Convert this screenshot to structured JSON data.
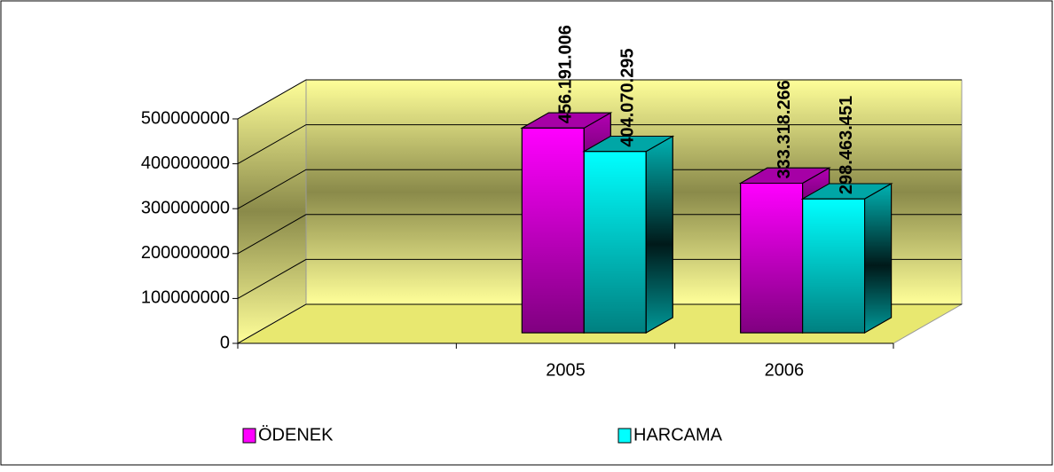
{
  "chart_data": {
    "type": "bar3d",
    "categories": [
      null,
      "2005",
      "2006"
    ],
    "series": [
      {
        "name": "ÖDENEK",
        "color": "#ff00ff",
        "values": [
          null,
          456191006,
          333318266
        ],
        "value_labels": [
          null,
          "456.191.006",
          "333.318.266"
        ]
      },
      {
        "name": "HARCAMA",
        "color": "#00ffff",
        "values": [
          null,
          404070295,
          298463451
        ],
        "value_labels": [
          null,
          "404.070.295",
          "298.463.451"
        ]
      }
    ],
    "ylim": [
      0,
      500000000
    ],
    "yticks": [
      0,
      100000000,
      200000000,
      300000000,
      400000000,
      500000000
    ],
    "grid": true,
    "legend": "bottom"
  }
}
